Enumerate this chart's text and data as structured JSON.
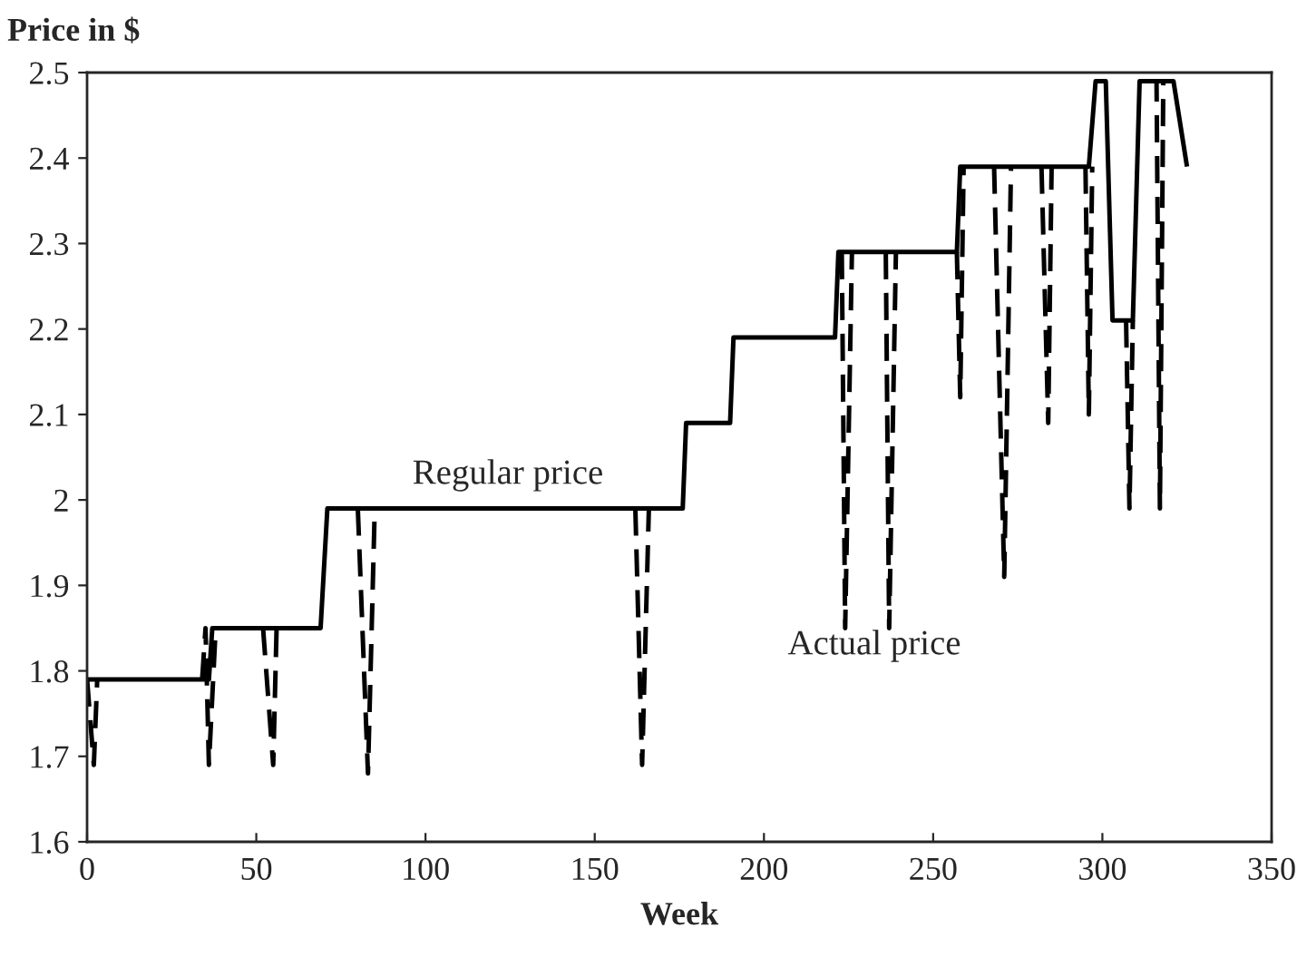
{
  "chart_data": {
    "type": "line",
    "xlabel": "Week",
    "ylabel": "Price in $",
    "series": [
      {
        "color": "#000000",
        "line_style": "dashed",
        "x": [
          0,
          2,
          3,
          10,
          34,
          35,
          36,
          38,
          45,
          52,
          55,
          56,
          70,
          80,
          83,
          85,
          120,
          162,
          164,
          166,
          200,
          223,
          224,
          226,
          230,
          236,
          237,
          239,
          250,
          257,
          258,
          259,
          265,
          268,
          271,
          273,
          278,
          282,
          284,
          285,
          290,
          295,
          296,
          297,
          305,
          307,
          308,
          309,
          313,
          314,
          316,
          317,
          318,
          320
        ],
        "values": [
          1.79,
          1.69,
          1.79,
          null,
          1.79,
          1.85,
          1.69,
          1.85,
          null,
          1.85,
          1.69,
          1.85,
          null,
          1.99,
          1.68,
          1.99,
          null,
          1.99,
          1.69,
          1.99,
          null,
          2.29,
          1.85,
          2.29,
          null,
          2.29,
          1.85,
          2.29,
          null,
          2.29,
          2.12,
          2.39,
          null,
          2.39,
          1.91,
          2.39,
          null,
          2.39,
          2.09,
          2.39,
          null,
          2.39,
          2.1,
          2.39,
          null,
          2.21,
          1.99,
          2.21,
          null,
          2.49,
          2.49,
          1.99,
          2.49,
          2.49
        ]
      },
      {
        "color": "#000000",
        "line_style": "solid",
        "x": [
          0,
          36,
          37,
          69,
          71,
          176,
          177,
          190,
          191,
          221,
          222,
          257,
          258,
          296,
          298,
          301,
          303,
          309,
          311,
          321,
          325
        ],
        "values": [
          1.79,
          1.79,
          1.85,
          1.85,
          1.99,
          1.99,
          2.09,
          2.09,
          2.19,
          2.19,
          2.29,
          2.29,
          2.39,
          2.39,
          2.49,
          2.49,
          2.21,
          2.21,
          2.49,
          2.49,
          2.39
        ]
      }
    ],
    "annotations": [
      "Regular price",
      "Actual price"
    ],
    "xlim": [
      0,
      350
    ],
    "xticks": [
      0,
      50,
      100,
      150,
      200,
      250,
      300,
      350
    ],
    "ylim": [
      1.6,
      2.5
    ],
    "yticks": [
      1.6,
      1.7,
      1.8,
      1.9,
      2,
      2.1,
      2.2,
      2.3,
      2.4,
      2.5
    ],
    "grid": false,
    "legend": false
  }
}
